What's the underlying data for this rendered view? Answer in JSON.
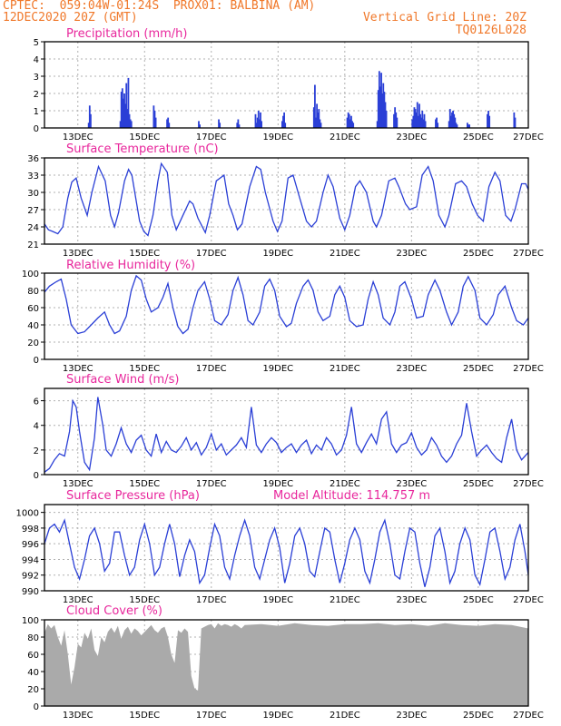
{
  "header": {
    "line1": "CPTEC:  059:04W-01:24S  PROX01: BALBINA (AM)",
    "line2": "12DEC2020 20Z (GMT)",
    "grid_note": "Vertical Grid Line: 20Z",
    "code": "TQ0126L028"
  },
  "colors": {
    "title": "#e8279c",
    "header": "#f0782a",
    "series": "#2a3fd6",
    "cloud": "#aaaaaa",
    "grid": "#b0b0b0"
  },
  "chart_data": [
    {
      "id": "precip",
      "type": "bar",
      "title": "Precipitation (mm/h)",
      "xlim": [
        0,
        14.5
      ],
      "ylim": [
        0,
        5
      ],
      "yticks": [
        0,
        1,
        2,
        3,
        4,
        5
      ],
      "xtick_labels": [
        "13DEC",
        "15DEC",
        "17DEC",
        "19DEC",
        "21DEC",
        "23DEC",
        "25DEC",
        "27DEC"
      ],
      "x": [
        1.3,
        1.33,
        1.36,
        2.25,
        2.28,
        2.31,
        2.34,
        2.37,
        2.4,
        2.43,
        2.46,
        2.49,
        2.52,
        2.55,
        2.58,
        3.25,
        3.28,
        3.31,
        3.65,
        3.68,
        3.71,
        4.6,
        4.63,
        5.2,
        5.23,
        5.75,
        5.78,
        5.81,
        6.3,
        6.33,
        6.36,
        6.39,
        6.42,
        6.45,
        6.48,
        7.1,
        7.13,
        7.16,
        7.19,
        8.05,
        8.08,
        8.11,
        8.14,
        8.17,
        8.2,
        8.23,
        8.26,
        9.05,
        9.08,
        9.11,
        9.14,
        9.17,
        9.2,
        9.23,
        9.95,
        9.98,
        10.01,
        10.04,
        10.07,
        10.1,
        10.13,
        10.16,
        10.19,
        10.22,
        10.45,
        10.48,
        10.51,
        10.54,
        11.0,
        11.03,
        11.06,
        11.09,
        11.12,
        11.15,
        11.18,
        11.21,
        11.24,
        11.27,
        11.3,
        11.33,
        11.36,
        11.39,
        11.7,
        11.73,
        11.76,
        12.1,
        12.13,
        12.16,
        12.19,
        12.22,
        12.25,
        12.28,
        12.31,
        12.34,
        12.65,
        12.68,
        12.71,
        13.25,
        13.28,
        13.31,
        14.05,
        14.08
      ],
      "values": [
        0.3,
        1.3,
        0.8,
        0.4,
        2.1,
        2.3,
        1.7,
        2.0,
        1.4,
        2.6,
        1.1,
        2.9,
        0.8,
        0.5,
        0.4,
        1.3,
        1.0,
        0.6,
        0.5,
        0.6,
        0.3,
        0.4,
        0.2,
        0.5,
        0.3,
        0.3,
        0.5,
        0.2,
        0.8,
        0.3,
        0.6,
        1.0,
        0.5,
        0.9,
        0.4,
        0.4,
        0.7,
        0.9,
        0.3,
        1.2,
        2.5,
        0.6,
        1.4,
        0.9,
        1.1,
        0.5,
        0.3,
        0.6,
        0.9,
        0.8,
        0.5,
        0.7,
        0.4,
        0.3,
        0.4,
        2.2,
        3.3,
        2.4,
        3.2,
        2.0,
        2.6,
        2.1,
        1.5,
        1.0,
        0.8,
        1.2,
        0.9,
        0.6,
        0.5,
        0.7,
        1.2,
        1.1,
        0.9,
        1.5,
        0.7,
        1.4,
        0.8,
        0.6,
        1.0,
        0.5,
        0.8,
        0.4,
        0.5,
        0.6,
        0.3,
        0.4,
        1.1,
        0.7,
        0.9,
        1.0,
        0.8,
        0.6,
        0.3,
        0.2,
        0.3,
        0.2,
        0.2,
        0.8,
        1.0,
        0.7,
        0.9,
        0.6
      ]
    },
    {
      "id": "temperature",
      "type": "line",
      "title": "Surface Temperature (nC)",
      "xlim": [
        0,
        14.5
      ],
      "ylim": [
        21,
        36
      ],
      "yticks": [
        21,
        24,
        27,
        30,
        33,
        36
      ],
      "xtick_labels": [
        "13DEC",
        "15DEC",
        "17DEC",
        "19DEC",
        "21DEC",
        "23DEC",
        "25DEC",
        "27DEC"
      ],
      "x": [
        0,
        0.12,
        0.25,
        0.4,
        0.55,
        0.7,
        0.82,
        0.95,
        1.1,
        1.28,
        1.42,
        1.62,
        1.82,
        1.98,
        2.1,
        2.22,
        2.4,
        2.52,
        2.62,
        2.85,
        2.98,
        3.1,
        3.25,
        3.4,
        3.5,
        3.68,
        3.82,
        3.95,
        4.15,
        4.35,
        4.45,
        4.6,
        4.82,
        4.95,
        5.15,
        5.38,
        5.52,
        5.65,
        5.78,
        5.92,
        6.15,
        6.35,
        6.48,
        6.62,
        6.85,
        6.98,
        7.12,
        7.3,
        7.45,
        7.65,
        7.85,
        8.0,
        8.15,
        8.35,
        8.5,
        8.65,
        8.85,
        9.0,
        9.15,
        9.32,
        9.45,
        9.65,
        9.85,
        9.95,
        10.1,
        10.32,
        10.5,
        10.62,
        10.82,
        10.95,
        11.15,
        11.32,
        11.5,
        11.65,
        11.82,
        12.0,
        12.12,
        12.32,
        12.5,
        12.65,
        12.82,
        12.98,
        13.15,
        13.32,
        13.5,
        13.65,
        13.82,
        13.98,
        14.1,
        14.3,
        14.42,
        14.5
      ],
      "values": [
        24.5,
        23.5,
        23.2,
        22.8,
        24.0,
        29.0,
        31.8,
        32.5,
        29.0,
        26.0,
        30.0,
        34.5,
        32.0,
        26.0,
        24.0,
        26.5,
        32.0,
        34.0,
        33.0,
        25.0,
        23.2,
        22.5,
        26.0,
        32.0,
        35.0,
        33.5,
        26.0,
        23.5,
        26.0,
        28.5,
        28.0,
        25.5,
        23.0,
        26.0,
        32.0,
        33.0,
        28.0,
        26.0,
        23.5,
        24.5,
        31.0,
        34.5,
        34.0,
        30.0,
        25.0,
        23.2,
        25.0,
        32.5,
        33.0,
        29.0,
        25.0,
        24.0,
        25.0,
        30.0,
        33.0,
        31.0,
        25.5,
        23.5,
        26.0,
        31.0,
        32.0,
        30.0,
        25.0,
        24.0,
        26.0,
        32.0,
        32.5,
        31.0,
        28.0,
        27.0,
        27.5,
        33.0,
        34.5,
        32.0,
        26.0,
        24.0,
        26.0,
        31.5,
        32.0,
        31.0,
        28.0,
        26.0,
        25.0,
        31.0,
        33.5,
        32.0,
        26.0,
        25.0,
        27.0,
        31.5,
        31.5,
        30.5
      ]
    },
    {
      "id": "humidity",
      "type": "line",
      "title": "Relative Humidity (%)",
      "xlim": [
        0,
        14.5
      ],
      "ylim": [
        0,
        100
      ],
      "yticks": [
        0,
        20,
        40,
        60,
        80,
        100
      ],
      "xtick_labels": [
        "13DEC",
        "15DEC",
        "17DEC",
        "19DEC",
        "21DEC",
        "23DEC",
        "25DEC",
        "27DEC"
      ],
      "x": [
        0,
        0.15,
        0.35,
        0.5,
        0.65,
        0.8,
        1.0,
        1.2,
        1.4,
        1.6,
        1.8,
        1.95,
        2.1,
        2.25,
        2.45,
        2.6,
        2.75,
        2.9,
        3.05,
        3.2,
        3.4,
        3.55,
        3.7,
        3.85,
        4.0,
        4.15,
        4.3,
        4.45,
        4.6,
        4.8,
        4.95,
        5.1,
        5.3,
        5.5,
        5.65,
        5.8,
        5.95,
        6.1,
        6.25,
        6.45,
        6.6,
        6.75,
        6.9,
        7.05,
        7.25,
        7.4,
        7.55,
        7.75,
        7.9,
        8.05,
        8.2,
        8.35,
        8.55,
        8.7,
        8.85,
        9.0,
        9.15,
        9.35,
        9.55,
        9.7,
        9.85,
        10.0,
        10.15,
        10.35,
        10.5,
        10.65,
        10.8,
        11.0,
        11.15,
        11.35,
        11.5,
        11.7,
        11.85,
        12.05,
        12.2,
        12.4,
        12.55,
        12.7,
        12.9,
        13.05,
        13.25,
        13.45,
        13.6,
        13.8,
        14.0,
        14.15,
        14.35,
        14.5
      ],
      "values": [
        78,
        85,
        90,
        93,
        70,
        40,
        30,
        32,
        40,
        48,
        55,
        40,
        30,
        33,
        50,
        80,
        97,
        92,
        70,
        55,
        60,
        72,
        88,
        60,
        38,
        30,
        35,
        60,
        80,
        90,
        70,
        45,
        40,
        52,
        80,
        95,
        75,
        45,
        40,
        55,
        85,
        93,
        80,
        50,
        38,
        42,
        65,
        85,
        92,
        80,
        55,
        45,
        50,
        75,
        85,
        72,
        45,
        38,
        40,
        70,
        90,
        75,
        48,
        40,
        55,
        85,
        90,
        70,
        48,
        50,
        75,
        92,
        80,
        55,
        40,
        55,
        85,
        96,
        80,
        48,
        40,
        52,
        75,
        85,
        60,
        45,
        40,
        48
      ]
    },
    {
      "id": "wind",
      "type": "line",
      "title": "Surface Wind (m/s)",
      "xlim": [
        0,
        14.5
      ],
      "ylim": [
        0,
        7
      ],
      "yticks": [
        0,
        2,
        4,
        6
      ],
      "xtick_labels": [
        "13DEC",
        "15DEC",
        "17DEC",
        "19DEC",
        "21DEC",
        "23DEC",
        "25DEC",
        "27DEC"
      ],
      "x": [
        0,
        0.15,
        0.3,
        0.45,
        0.6,
        0.75,
        0.85,
        0.95,
        1.05,
        1.2,
        1.35,
        1.5,
        1.6,
        1.75,
        1.85,
        2.0,
        2.15,
        2.3,
        2.45,
        2.6,
        2.75,
        2.9,
        3.05,
        3.2,
        3.35,
        3.5,
        3.65,
        3.8,
        3.95,
        4.1,
        4.25,
        4.4,
        4.55,
        4.7,
        4.85,
        5.0,
        5.15,
        5.3,
        5.45,
        5.6,
        5.75,
        5.9,
        6.05,
        6.2,
        6.35,
        6.5,
        6.65,
        6.8,
        6.95,
        7.1,
        7.25,
        7.4,
        7.55,
        7.7,
        7.85,
        8.0,
        8.15,
        8.3,
        8.45,
        8.6,
        8.75,
        8.9,
        9.05,
        9.2,
        9.35,
        9.5,
        9.65,
        9.8,
        9.95,
        10.1,
        10.25,
        10.4,
        10.55,
        10.7,
        10.85,
        11.0,
        11.15,
        11.3,
        11.45,
        11.6,
        11.75,
        11.9,
        12.05,
        12.2,
        12.35,
        12.5,
        12.65,
        12.8,
        12.95,
        13.1,
        13.25,
        13.4,
        13.55,
        13.7,
        13.85,
        14.0,
        14.15,
        14.3,
        14.5
      ],
      "values": [
        0.2,
        0.5,
        1.2,
        1.7,
        1.5,
        3.5,
        6.0,
        5.5,
        3.5,
        1.0,
        0.4,
        3.0,
        6.3,
        4.0,
        2.0,
        1.5,
        2.5,
        3.8,
        2.5,
        1.8,
        2.8,
        3.2,
        2.0,
        1.5,
        3.3,
        1.8,
        2.7,
        2.0,
        1.8,
        2.3,
        3.0,
        2.0,
        2.6,
        1.6,
        2.2,
        3.3,
        2.0,
        2.5,
        1.6,
        2.0,
        2.4,
        3.0,
        2.2,
        5.5,
        2.4,
        1.8,
        2.5,
        3.0,
        2.6,
        1.8,
        2.2,
        2.5,
        1.8,
        2.4,
        2.8,
        1.7,
        2.4,
        2.0,
        3.0,
        2.5,
        1.6,
        2.0,
        3.2,
        5.5,
        2.5,
        1.8,
        2.6,
        3.3,
        2.5,
        4.5,
        5.1,
        2.5,
        1.8,
        2.4,
        2.6,
        3.4,
        2.2,
        1.6,
        2.0,
        3.0,
        2.4,
        1.5,
        1.0,
        1.5,
        2.5,
        3.2,
        5.8,
        3.5,
        1.5,
        2.0,
        2.4,
        1.8,
        1.3,
        1.0,
        3.0,
        4.5,
        2.0,
        1.2,
        1.8
      ]
    },
    {
      "id": "pressure",
      "type": "line",
      "title": "Surface Pressure (hPa)",
      "annotation": "Model Altitude: 114.757 m",
      "xlim": [
        0,
        14.5
      ],
      "ylim": [
        990,
        1001
      ],
      "yticks": [
        990,
        992,
        994,
        996,
        998,
        1000
      ],
      "xtick_labels": [
        "13DEC",
        "15DEC",
        "17DEC",
        "19DEC",
        "21DEC",
        "23DEC",
        "25DEC",
        "27DEC"
      ],
      "x": [
        0,
        0.15,
        0.3,
        0.45,
        0.6,
        0.75,
        0.9,
        1.05,
        1.2,
        1.35,
        1.5,
        1.65,
        1.8,
        1.95,
        2.1,
        2.25,
        2.4,
        2.55,
        2.7,
        2.85,
        3.0,
        3.15,
        3.3,
        3.45,
        3.6,
        3.75,
        3.9,
        4.05,
        4.2,
        4.35,
        4.5,
        4.65,
        4.8,
        4.95,
        5.1,
        5.25,
        5.4,
        5.55,
        5.7,
        5.85,
        6.0,
        6.15,
        6.3,
        6.45,
        6.6,
        6.75,
        6.9,
        7.05,
        7.2,
        7.35,
        7.5,
        7.65,
        7.8,
        7.95,
        8.1,
        8.25,
        8.4,
        8.55,
        8.7,
        8.85,
        9.0,
        9.15,
        9.3,
        9.45,
        9.6,
        9.75,
        9.9,
        10.05,
        10.2,
        10.35,
        10.5,
        10.65,
        10.8,
        10.95,
        11.1,
        11.25,
        11.4,
        11.55,
        11.7,
        11.85,
        12.0,
        12.15,
        12.3,
        12.45,
        12.6,
        12.75,
        12.9,
        13.05,
        13.2,
        13.35,
        13.5,
        13.65,
        13.8,
        13.95,
        14.1,
        14.25,
        14.4,
        14.5
      ],
      "values": [
        996.0,
        998.0,
        998.5,
        997.5,
        999.0,
        996.0,
        993.0,
        991.5,
        994.0,
        997.0,
        998.0,
        996.0,
        992.5,
        993.5,
        997.5,
        997.5,
        994.5,
        992.0,
        993.0,
        996.5,
        998.5,
        996.0,
        992.0,
        993.0,
        996.0,
        998.5,
        996.0,
        991.8,
        994.5,
        996.5,
        995.0,
        991.0,
        992.0,
        995.5,
        998.5,
        997.0,
        993.0,
        991.5,
        994.5,
        997.0,
        999.0,
        997.0,
        993.0,
        991.5,
        994.0,
        996.5,
        998.0,
        995.5,
        991.0,
        993.5,
        997.0,
        998.0,
        996.0,
        992.5,
        991.8,
        995.0,
        998.0,
        997.5,
        994.0,
        991.0,
        993.5,
        996.5,
        998.0,
        996.5,
        992.5,
        991.0,
        994.0,
        997.5,
        999.0,
        996.0,
        992.0,
        991.5,
        995.0,
        998.0,
        997.5,
        993.5,
        990.5,
        993.0,
        997.0,
        998.0,
        995.0,
        991.0,
        992.5,
        996.0,
        998.0,
        996.5,
        992.0,
        990.8,
        994.0,
        997.5,
        998.0,
        995.0,
        991.5,
        993.0,
        996.5,
        998.5,
        995.0,
        992.0
      ]
    },
    {
      "id": "cloud",
      "type": "area",
      "title": "Cloud Cover (%)",
      "xlim": [
        0,
        14.5
      ],
      "ylim": [
        0,
        100
      ],
      "yticks": [
        0,
        20,
        40,
        60,
        80,
        100
      ],
      "xtick_labels": [
        "13DEC",
        "15DEC",
        "17DEC",
        "19DEC",
        "21DEC",
        "23DEC",
        "25DEC",
        "27DEC"
      ],
      "x": [
        0,
        0.1,
        0.2,
        0.3,
        0.4,
        0.5,
        0.6,
        0.7,
        0.8,
        0.9,
        1.0,
        1.1,
        1.2,
        1.3,
        1.4,
        1.5,
        1.6,
        1.7,
        1.8,
        1.9,
        2.0,
        2.1,
        2.2,
        2.3,
        2.4,
        2.5,
        2.6,
        2.7,
        2.8,
        2.9,
        3.0,
        3.1,
        3.2,
        3.3,
        3.4,
        3.5,
        3.6,
        3.7,
        3.8,
        3.9,
        4.0,
        4.1,
        4.2,
        4.3,
        4.4,
        4.5,
        4.6,
        4.7,
        4.8,
        4.9,
        5.0,
        5.1,
        5.2,
        5.3,
        5.4,
        5.5,
        5.6,
        5.7,
        5.8,
        5.9,
        6.0,
        6.5,
        7.0,
        7.5,
        8.0,
        8.5,
        9.0,
        9.5,
        10.0,
        10.5,
        11.0,
        11.5,
        12.0,
        12.5,
        13.0,
        13.5,
        14.0,
        14.5
      ],
      "values": [
        85,
        95,
        90,
        94,
        80,
        70,
        88,
        60,
        25,
        45,
        72,
        68,
        85,
        78,
        90,
        65,
        58,
        80,
        74,
        86,
        91,
        85,
        93,
        78,
        88,
        92,
        84,
        90,
        87,
        82,
        86,
        90,
        94,
        88,
        85,
        90,
        92,
        80,
        60,
        50,
        88,
        85,
        90,
        86,
        35,
        20,
        18,
        90,
        92,
        94,
        95,
        90,
        96,
        93,
        95,
        94,
        92,
        95,
        93,
        90,
        94,
        95,
        93,
        96,
        94,
        93,
        95,
        95,
        96,
        94,
        95,
        93,
        96,
        94,
        93,
        95,
        94,
        90
      ]
    }
  ]
}
